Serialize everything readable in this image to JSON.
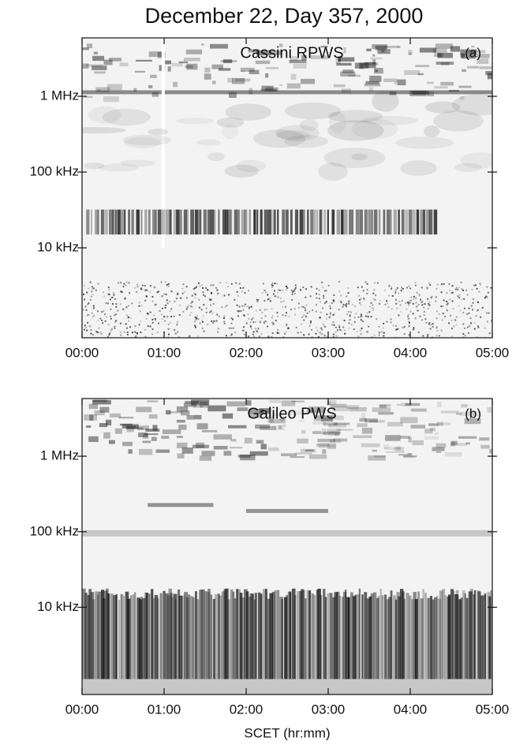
{
  "title": "December 22, Day 357, 2000",
  "chart_data": [
    {
      "type": "spectrogram",
      "annotation": "Cassini RPWS",
      "panel_label": "(a)",
      "log_scale": true,
      "xlim": [
        0,
        5
      ],
      "xticks": [
        {
          "value": 0,
          "label": "00:00"
        },
        {
          "value": 1,
          "label": "01:00"
        },
        {
          "value": 2,
          "label": "02:00"
        },
        {
          "value": 3,
          "label": "03:00"
        },
        {
          "value": 4,
          "label": "04:00"
        },
        {
          "value": 5,
          "label": "05:00"
        }
      ],
      "ylim": [
        650,
        5900000
      ],
      "yticks": [
        {
          "value": 10000,
          "label": "10 kHz"
        },
        {
          "value": 100000,
          "label": "100 kHz"
        },
        {
          "value": 1000000,
          "label": "1 MHz"
        }
      ]
    },
    {
      "type": "spectrogram",
      "annotation": "Galileo PWS",
      "panel_label": "(b)",
      "log_scale": true,
      "xlabel": "SCET (hr:mm)",
      "xlim": [
        0,
        5
      ],
      "xticks": [
        {
          "value": 0,
          "label": "00:00"
        },
        {
          "value": 1,
          "label": "01:00"
        },
        {
          "value": 2,
          "label": "02:00"
        },
        {
          "value": 3,
          "label": "03:00"
        },
        {
          "value": 4,
          "label": "04:00"
        },
        {
          "value": 5,
          "label": "05:00"
        }
      ],
      "ylim": [
        700,
        5800000
      ],
      "yticks": [
        {
          "value": 10000,
          "label": "10 kHz"
        },
        {
          "value": 100000,
          "label": "100 kHz"
        },
        {
          "value": 1000000,
          "label": "1 MHz"
        }
      ]
    }
  ]
}
